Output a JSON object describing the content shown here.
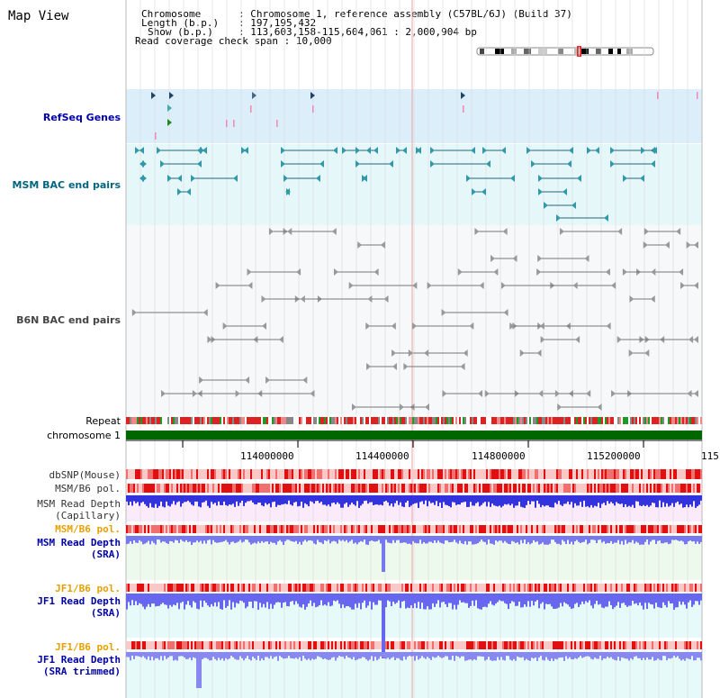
{
  "app": {
    "title": "Map View"
  },
  "header": {
    "line1_key": "Chromosome",
    "line1_val": "Chromosome 1, reference assembly (C57BL/6J) (Build 37)",
    "line2_key": "Length (b.p.)",
    "line2_val": "197,195,432",
    "line3_key": "Show (b.p.)",
    "line3_val": "113,603,158-115,604,061 : 2,000,904 bp",
    "line4_key": "Read coverage check span",
    "line4_val": "10,000"
  },
  "tracks": {
    "refseq": "RefSeq Genes",
    "msm_bac": "MSM BAC end pairs",
    "b6n_bac": "B6N BAC end pairs",
    "repeat": "Repeat",
    "chromosome": "chromosome 1",
    "dbsnp": "dbSNP(Mouse)",
    "msm_b6_pol_1": "MSM/B6 pol.",
    "msm_read_cap_1": "MSM Read Depth",
    "msm_read_cap_2": "(Capillary)",
    "msm_b6_pol_2": "MSM/B6 pol.",
    "msm_read_sra_1": "MSM Read Depth",
    "msm_read_sra_2": "(SRA)",
    "jf1_b6_pol_1": "JF1/B6 pol.",
    "jf1_read_sra_1": "JF1 Read Depth",
    "jf1_read_sra_2": "(SRA)",
    "jf1_b6_pol_2": "JF1/B6 pol.",
    "jf1_read_trim_1": "JF1 Read Depth",
    "jf1_read_trim_2": "(SRA trimmed)"
  },
  "ruler": {
    "ticks": [
      "114000000",
      "114400000",
      "114800000",
      "115200000",
      "115"
    ]
  },
  "colors": {
    "refseq_bg": "#dbeefa",
    "msm_bg": "#e6f7fa",
    "msm_label": "#006680",
    "refseq_label": "#0000aa",
    "b6n_label": "#444444",
    "pol_orange": "#e8a000",
    "depth_blue": "#0000aa",
    "chrom_green": "#006600"
  }
}
